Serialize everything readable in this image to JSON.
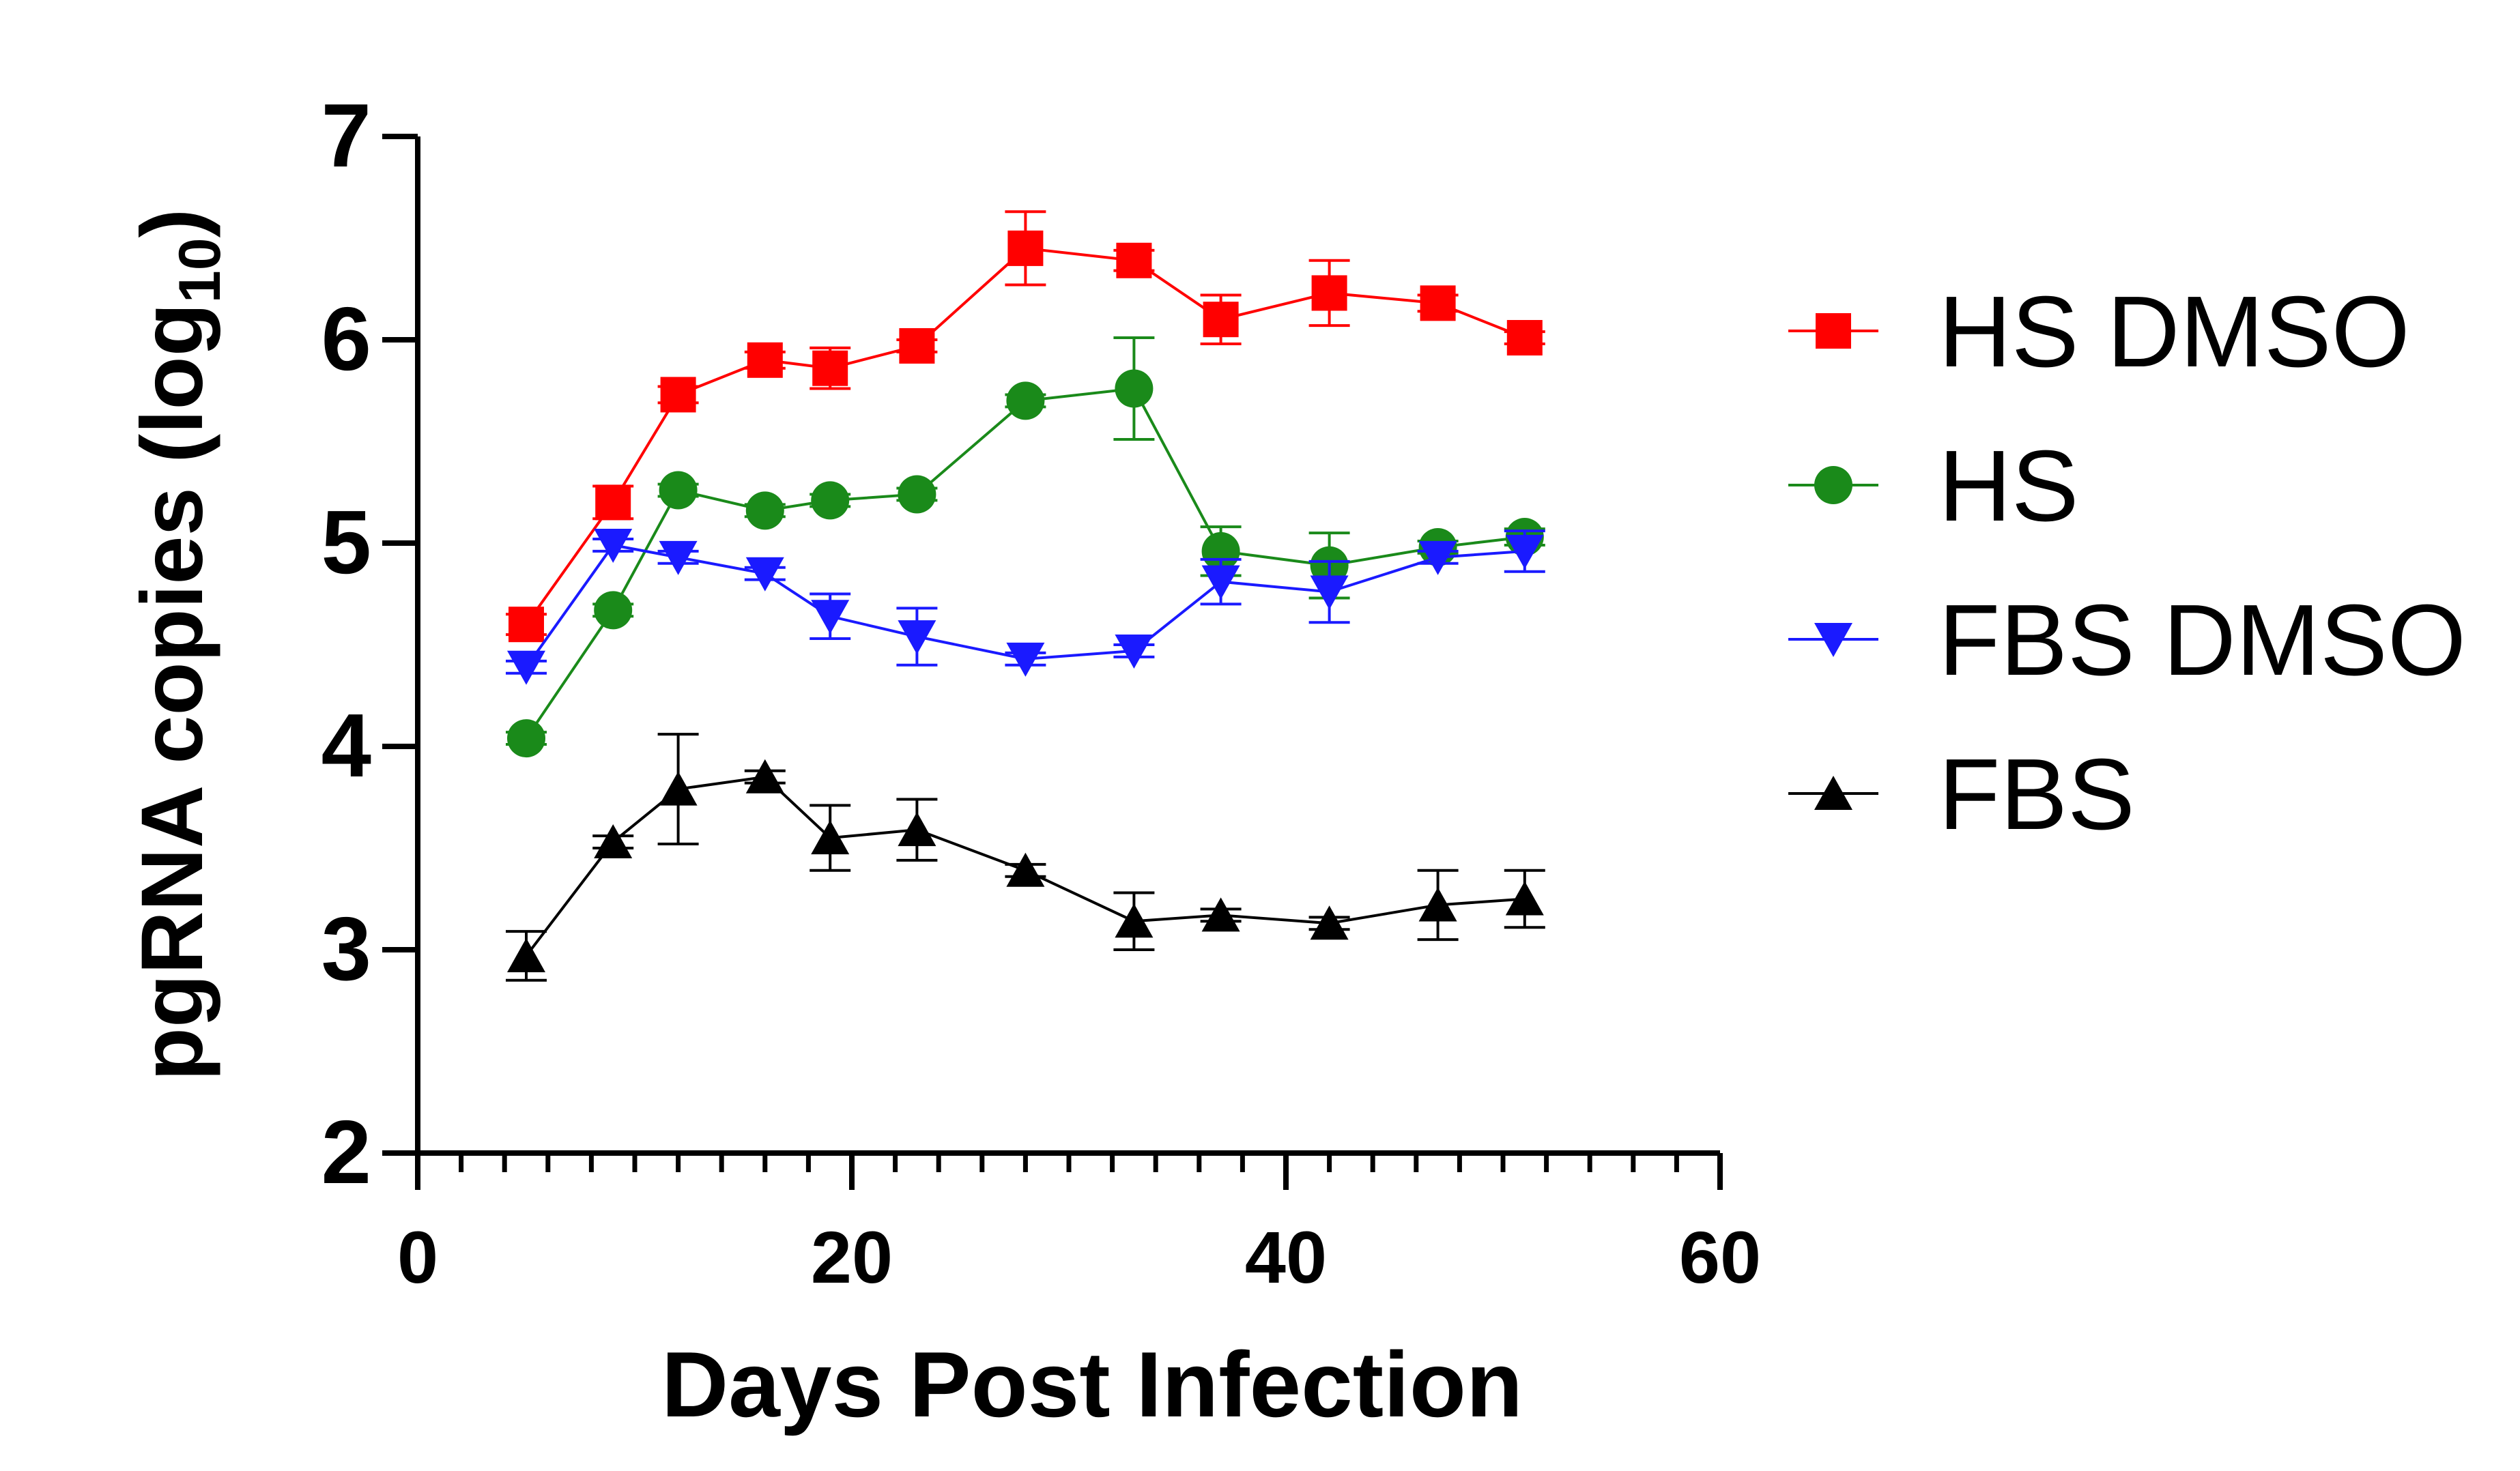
{
  "chart_data": {
    "type": "line",
    "title": "",
    "xlabel": "Days Post Infection",
    "ylabel_main": "pgRNA copies (log",
    "ylabel_sub": "10",
    "ylabel_close": ")",
    "xlim": [
      0,
      60
    ],
    "ylim": [
      2,
      7
    ],
    "xticks": [
      0,
      20,
      40,
      60
    ],
    "xtick_labels": [
      "0",
      "20",
      "40",
      "60"
    ],
    "x_minor_step": 2,
    "yticks": [
      2,
      3,
      4,
      5,
      6,
      7
    ],
    "ytick_labels": [
      "2",
      "3",
      "4",
      "5",
      "6",
      "7"
    ],
    "legend_position": "right",
    "series": [
      {
        "name": "HS DMSO",
        "color": "#ff0000",
        "marker": "square",
        "points": [
          {
            "x": 5,
            "y": 4.6,
            "err": 0.05
          },
          {
            "x": 9,
            "y": 5.2,
            "err": 0.08
          },
          {
            "x": 12,
            "y": 5.73,
            "err": 0.04
          },
          {
            "x": 16,
            "y": 5.9,
            "err": 0.04
          },
          {
            "x": 19,
            "y": 5.86,
            "err": 0.1
          },
          {
            "x": 23,
            "y": 5.97,
            "err": 0.03
          },
          {
            "x": 28,
            "y": 6.45,
            "err": 0.18
          },
          {
            "x": 33,
            "y": 6.39,
            "err": 0.05
          },
          {
            "x": 37,
            "y": 6.1,
            "err": 0.12
          },
          {
            "x": 42,
            "y": 6.23,
            "err": 0.16
          },
          {
            "x": 47,
            "y": 6.18,
            "err": 0.04
          },
          {
            "x": 51,
            "y": 6.01,
            "err": 0.03
          }
        ]
      },
      {
        "name": "HS",
        "color": "#1a8a1a",
        "marker": "circle",
        "points": [
          {
            "x": 5,
            "y": 4.04,
            "err": 0.03
          },
          {
            "x": 9,
            "y": 4.67,
            "err": 0.03
          },
          {
            "x": 12,
            "y": 5.26,
            "err": 0.03
          },
          {
            "x": 16,
            "y": 5.16,
            "err": 0.03
          },
          {
            "x": 19,
            "y": 5.21,
            "err": 0.03
          },
          {
            "x": 23,
            "y": 5.24,
            "err": 0.03
          },
          {
            "x": 28,
            "y": 5.7,
            "err": 0.03
          },
          {
            "x": 33,
            "y": 5.76,
            "err": 0.25
          },
          {
            "x": 37,
            "y": 4.96,
            "err": 0.12
          },
          {
            "x": 42,
            "y": 4.89,
            "err": 0.16
          },
          {
            "x": 47,
            "y": 4.98,
            "err": 0.03
          },
          {
            "x": 51,
            "y": 5.03,
            "err": 0.04
          }
        ]
      },
      {
        "name": "FBS DMSO",
        "color": "#1a1aff",
        "marker": "triangle-down",
        "points": [
          {
            "x": 5,
            "y": 4.39,
            "err": 0.03
          },
          {
            "x": 9,
            "y": 4.99,
            "err": 0.03
          },
          {
            "x": 12,
            "y": 4.93,
            "err": 0.03
          },
          {
            "x": 16,
            "y": 4.85,
            "err": 0.03
          },
          {
            "x": 19,
            "y": 4.64,
            "err": 0.11
          },
          {
            "x": 23,
            "y": 4.54,
            "err": 0.14
          },
          {
            "x": 28,
            "y": 4.43,
            "err": 0.03
          },
          {
            "x": 33,
            "y": 4.47,
            "err": 0.03
          },
          {
            "x": 37,
            "y": 4.81,
            "err": 0.11
          },
          {
            "x": 42,
            "y": 4.76,
            "err": 0.15
          },
          {
            "x": 47,
            "y": 4.93,
            "err": 0.03
          },
          {
            "x": 51,
            "y": 4.96,
            "err": 0.1
          }
        ]
      },
      {
        "name": "FBS",
        "color": "#000000",
        "marker": "triangle-up",
        "points": [
          {
            "x": 5,
            "y": 2.97,
            "err": 0.12
          },
          {
            "x": 9,
            "y": 3.53,
            "err": 0.03
          },
          {
            "x": 12,
            "y": 3.79,
            "err": 0.27
          },
          {
            "x": 16,
            "y": 3.85,
            "err": 0.03
          },
          {
            "x": 19,
            "y": 3.55,
            "err": 0.16
          },
          {
            "x": 23,
            "y": 3.59,
            "err": 0.15
          },
          {
            "x": 28,
            "y": 3.39,
            "err": 0.03
          },
          {
            "x": 33,
            "y": 3.14,
            "err": 0.14
          },
          {
            "x": 37,
            "y": 3.17,
            "err": 0.03
          },
          {
            "x": 42,
            "y": 3.13,
            "err": 0.03
          },
          {
            "x": 47,
            "y": 3.22,
            "err": 0.17
          },
          {
            "x": 51,
            "y": 3.25,
            "err": 0.14
          }
        ]
      }
    ]
  }
}
